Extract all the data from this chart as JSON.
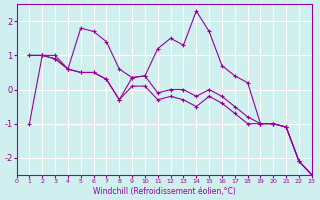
{
  "xlabel": "Windchill (Refroidissement éolien,°C)",
  "bg_color": "#d0f0f0",
  "grid_color": "#ffffff",
  "line_color": "#990099",
  "marker_color": "#990099",
  "xlim": [
    0,
    23
  ],
  "ylim": [
    -2.5,
    2.5
  ],
  "yticks": [
    -2,
    -1,
    0,
    1,
    2
  ],
  "xticks": [
    0,
    1,
    2,
    3,
    4,
    5,
    6,
    7,
    8,
    9,
    10,
    11,
    12,
    13,
    14,
    15,
    16,
    17,
    18,
    19,
    20,
    21,
    22,
    23
  ],
  "series": [
    [
      1,
      1.0,
      1.0,
      0.6,
      1.8,
      1.7,
      1.4,
      0.6,
      0.35,
      0.4,
      1.2,
      1.5,
      1.3,
      2.3,
      1.7,
      0.7,
      0.4,
      0.2,
      -1.0,
      -1.0,
      -1.1,
      -2.1,
      -2.5
    ],
    [
      1,
      1.0,
      0.9,
      0.6,
      0.5,
      0.5,
      0.3,
      -0.3,
      0.35,
      0.4,
      -0.1,
      0.0,
      0.0,
      -0.2,
      0.0,
      -0.2,
      -0.5,
      -0.8,
      -1.0,
      -1.0,
      -1.1,
      -2.1,
      -2.5
    ],
    [
      -1,
      1.0,
      0.9,
      0.6,
      0.5,
      0.5,
      0.3,
      -0.3,
      0.1,
      0.1,
      -0.3,
      -0.2,
      -0.3,
      -0.5,
      -0.2,
      -0.4,
      -0.7,
      -1.0,
      -1.0,
      -1.0,
      -1.1,
      -2.1,
      -2.5
    ]
  ],
  "x_start": 1
}
